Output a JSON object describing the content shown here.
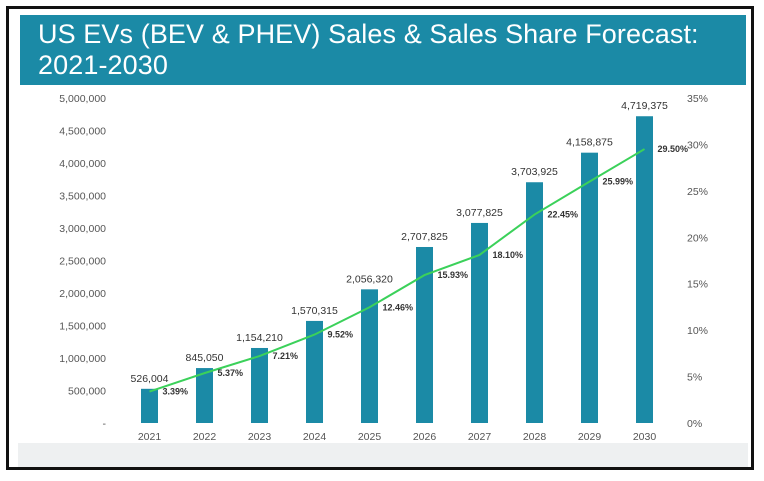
{
  "title": "US EVs (BEV & PHEV) Sales & Sales Share Forecast: 2021-2030",
  "colors": {
    "title_bg": "#1b8aa6",
    "bar": "#1b8aa6",
    "line": "#3bd15a"
  },
  "chart_data": {
    "type": "bar",
    "categories": [
      "2021",
      "2022",
      "2023",
      "2024",
      "2025",
      "2026",
      "2027",
      "2028",
      "2029",
      "2030"
    ],
    "series": [
      {
        "type": "bar",
        "axis": "left",
        "values": [
          526004,
          845050,
          1154210,
          1570315,
          2056320,
          2707825,
          3077825,
          3703925,
          4158875,
          4719375
        ],
        "labels": [
          "526,004",
          "845,050",
          "1,154,210",
          "1,570,315",
          "2,056,320",
          "2,707,825",
          "3,077,825",
          "3,703,925",
          "4,158,875",
          "4,719,375"
        ]
      },
      {
        "type": "line",
        "axis": "right",
        "values": [
          3.39,
          5.37,
          7.21,
          9.52,
          12.46,
          15.93,
          18.1,
          22.45,
          25.99,
          29.5
        ],
        "labels": [
          "3.39%",
          "5.37%",
          "7.21%",
          "9.52%",
          "12.46%",
          "15.93%",
          "18.10%",
          "22.45%",
          "25.99%",
          "29.50%"
        ]
      }
    ],
    "y_left": {
      "range": [
        0,
        5000000
      ],
      "ticks": [
        "-",
        "500,000",
        "1,000,000",
        "1,500,000",
        "2,000,000",
        "2,500,000",
        "3,000,000",
        "3,500,000",
        "4,000,000",
        "4,500,000",
        "5,000,000"
      ]
    },
    "y_right": {
      "range": [
        0,
        35
      ],
      "ticks": [
        "0%",
        "5%",
        "10%",
        "15%",
        "20%",
        "25%",
        "30%",
        "35%"
      ]
    },
    "grid": false,
    "legend": "none"
  }
}
